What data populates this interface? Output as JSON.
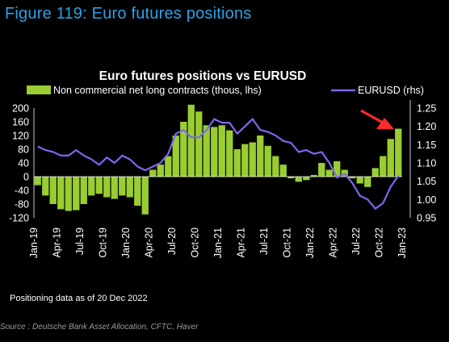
{
  "figure_title": "Figure 119: Euro futures positions",
  "note": "Positioning data as of 20 Dec 2022",
  "source": "Source : Deutsche Bank Asset Allocation, CFTC, Haver",
  "chart_data": {
    "type": "bar",
    "title": "Euro futures positions vs EURUSD",
    "legend_position": "top",
    "colors": {
      "bars": "#9acd32",
      "line": "#7b68ee",
      "background": "#000000",
      "text": "#ffffff",
      "arrow": "#ff2a2a"
    },
    "x_tick_labels": [
      "Jan-19",
      "Apr-19",
      "Jul-19",
      "Oct-19",
      "Jan-20",
      "Apr-20",
      "Jul-20",
      "Oct-20",
      "Jan-21",
      "Apr-21",
      "Jul-21",
      "Oct-21",
      "Jan-22",
      "Apr-22",
      "Jul-22",
      "Oct-22",
      "Jan-23"
    ],
    "x_range": [
      "2019-01",
      "2023-01"
    ],
    "y_left": {
      "ticks": [
        "200",
        "160",
        "120",
        "80",
        "40",
        "0",
        "-40",
        "-80",
        "-120"
      ],
      "min": -120,
      "max": 200
    },
    "y_right": {
      "ticks": [
        "1.25",
        "1.20",
        "1.15",
        "1.10",
        "1.05",
        "1.00",
        "0.95"
      ],
      "min": 0.95,
      "max": 1.25
    },
    "series": [
      {
        "name": "Non commercial net long contracts (thous, lhs)",
        "type": "bar",
        "axis": "left",
        "points": [
          [
            "2019-01",
            -25
          ],
          [
            "2019-02",
            -55
          ],
          [
            "2019-03",
            -80
          ],
          [
            "2019-04",
            -95
          ],
          [
            "2019-05",
            -100
          ],
          [
            "2019-06",
            -98
          ],
          [
            "2019-07",
            -80
          ],
          [
            "2019-08",
            -55
          ],
          [
            "2019-09",
            -50
          ],
          [
            "2019-10",
            -60
          ],
          [
            "2019-11",
            -65
          ],
          [
            "2019-12",
            -55
          ],
          [
            "2020-01",
            -60
          ],
          [
            "2020-02",
            -85
          ],
          [
            "2020-03",
            -110
          ],
          [
            "2020-04",
            20
          ],
          [
            "2020-05",
            35
          ],
          [
            "2020-06",
            60
          ],
          [
            "2020-07",
            120
          ],
          [
            "2020-08",
            160
          ],
          [
            "2020-09",
            210
          ],
          [
            "2020-10",
            190
          ],
          [
            "2020-11",
            150
          ],
          [
            "2020-12",
            145
          ],
          [
            "2021-01",
            150
          ],
          [
            "2021-02",
            135
          ],
          [
            "2021-03",
            80
          ],
          [
            "2021-04",
            95
          ],
          [
            "2021-05",
            100
          ],
          [
            "2021-06",
            120
          ],
          [
            "2021-07",
            90
          ],
          [
            "2021-08",
            60
          ],
          [
            "2021-09",
            35
          ],
          [
            "2021-10",
            -5
          ],
          [
            "2021-11",
            -15
          ],
          [
            "2021-12",
            -10
          ],
          [
            "2022-01",
            5
          ],
          [
            "2022-02",
            40
          ],
          [
            "2022-03",
            20
          ],
          [
            "2022-04",
            45
          ],
          [
            "2022-05",
            20
          ],
          [
            "2022-06",
            -5
          ],
          [
            "2022-07",
            -20
          ],
          [
            "2022-08",
            -30
          ],
          [
            "2022-09",
            25
          ],
          [
            "2022-10",
            60
          ],
          [
            "2022-11",
            110
          ],
          [
            "2022-12",
            140
          ]
        ]
      },
      {
        "name": "EURUSD (rhs)",
        "type": "line",
        "axis": "right",
        "points": [
          [
            "2019-01",
            1.145
          ],
          [
            "2019-02",
            1.135
          ],
          [
            "2019-03",
            1.13
          ],
          [
            "2019-04",
            1.12
          ],
          [
            "2019-05",
            1.12
          ],
          [
            "2019-06",
            1.135
          ],
          [
            "2019-07",
            1.12
          ],
          [
            "2019-08",
            1.11
          ],
          [
            "2019-09",
            1.095
          ],
          [
            "2019-10",
            1.115
          ],
          [
            "2019-11",
            1.1
          ],
          [
            "2019-12",
            1.12
          ],
          [
            "2020-01",
            1.11
          ],
          [
            "2020-02",
            1.09
          ],
          [
            "2020-03",
            1.08
          ],
          [
            "2020-04",
            1.09
          ],
          [
            "2020-05",
            1.1
          ],
          [
            "2020-06",
            1.125
          ],
          [
            "2020-07",
            1.18
          ],
          [
            "2020-08",
            1.19
          ],
          [
            "2020-09",
            1.17
          ],
          [
            "2020-10",
            1.17
          ],
          [
            "2020-11",
            1.19
          ],
          [
            "2020-12",
            1.22
          ],
          [
            "2021-01",
            1.21
          ],
          [
            "2021-02",
            1.21
          ],
          [
            "2021-03",
            1.18
          ],
          [
            "2021-04",
            1.2
          ],
          [
            "2021-05",
            1.22
          ],
          [
            "2021-06",
            1.19
          ],
          [
            "2021-07",
            1.185
          ],
          [
            "2021-08",
            1.175
          ],
          [
            "2021-09",
            1.16
          ],
          [
            "2021-10",
            1.155
          ],
          [
            "2021-11",
            1.13
          ],
          [
            "2021-12",
            1.135
          ],
          [
            "2022-01",
            1.125
          ],
          [
            "2022-02",
            1.13
          ],
          [
            "2022-03",
            1.1
          ],
          [
            "2022-04",
            1.06
          ],
          [
            "2022-05",
            1.07
          ],
          [
            "2022-06",
            1.045
          ],
          [
            "2022-07",
            1.01
          ],
          [
            "2022-08",
            1.0
          ],
          [
            "2022-09",
            0.975
          ],
          [
            "2022-10",
            0.99
          ],
          [
            "2022-11",
            1.035
          ],
          [
            "2022-12",
            1.065
          ]
        ]
      }
    ],
    "annotation": "red arrow pointing to latest positioning bar"
  }
}
